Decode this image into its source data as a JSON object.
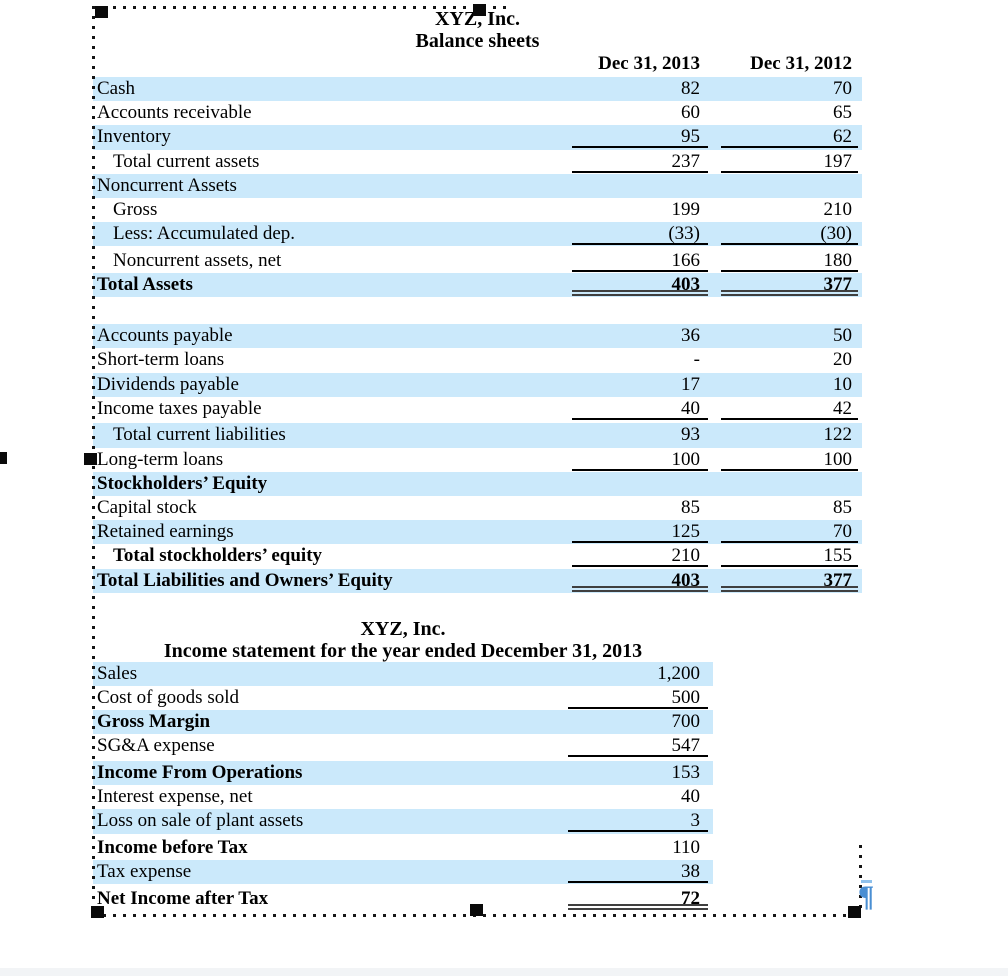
{
  "colors": {
    "row_shade": "#cbe9fb",
    "pilcrow": "#4a8fd3",
    "underline": "#000000",
    "double_rule": "#3f3f3f"
  },
  "balance_sheet": {
    "title": "XYZ, Inc.",
    "subtitle": "Balance sheets",
    "columns": [
      "Dec 31, 2013",
      "Dec 31, 2012"
    ],
    "rows": [
      {
        "label": "Cash",
        "v2013": "82",
        "v2012": "70",
        "shaded": true
      },
      {
        "label": "Accounts receivable",
        "v2013": "60",
        "v2012": "65"
      },
      {
        "label": "Inventory",
        "v2013": "95",
        "v2012": "62",
        "shaded": true,
        "underline": true
      },
      {
        "label": "Total current assets",
        "v2013": "237",
        "v2012": "197",
        "indent": 1,
        "underline": true
      },
      {
        "label": "Noncurrent Assets",
        "shaded": true
      },
      {
        "label": "Gross",
        "v2013": "199",
        "v2012": "210",
        "indent": 1
      },
      {
        "label": "Less: Accumulated dep.",
        "v2013": "(33)",
        "v2012": "(30)",
        "shaded": true,
        "indent": 1,
        "underline": true
      },
      {
        "label": "Noncurrent assets, net",
        "v2013": "166",
        "v2012": "180",
        "indent": 1,
        "underline": true,
        "gap_before": true
      },
      {
        "label": "Total Assets",
        "v2013": "403",
        "v2012": "377",
        "shaded": true,
        "bold": true,
        "double": true
      },
      {
        "type": "spacer"
      },
      {
        "label": "Accounts payable",
        "v2013": "36",
        "v2012": "50",
        "shaded": true
      },
      {
        "label": "Short-term loans",
        "v2013": "-",
        "v2012": "20"
      },
      {
        "label": "Dividends payable",
        "v2013": "17",
        "v2012": "10",
        "shaded": true
      },
      {
        "label": "Income taxes payable",
        "v2013": "40",
        "v2012": "42",
        "underline": true
      },
      {
        "label": "Total current liabilities",
        "v2013": "93",
        "v2012": "122",
        "shaded": true,
        "indent": 1,
        "gap_before": true
      },
      {
        "label": "Long-term loans",
        "v2013": "100",
        "v2012": "100",
        "underline": true
      },
      {
        "label": "Stockholders’ Equity",
        "shaded": true,
        "bold_label": true
      },
      {
        "label": "Capital stock",
        "v2013": "85",
        "v2012": "85"
      },
      {
        "label": "Retained earnings",
        "v2013": "125",
        "v2012": "70",
        "shaded": true,
        "underline": true
      },
      {
        "label": "Total stockholders’ equity",
        "v2013": "210",
        "v2012": "155",
        "bold_label": true,
        "indent": 1,
        "underline": true
      },
      {
        "label": "Total Liabilities and Owners’ Equity",
        "v2013": "403",
        "v2012": "377",
        "shaded": true,
        "bold": true,
        "double": true
      }
    ]
  },
  "income_statement": {
    "title": "XYZ, Inc.",
    "subtitle": "Income statement for the year ended December 31, 2013",
    "rows": [
      {
        "label": "Sales",
        "value": "1,200",
        "shaded": true
      },
      {
        "label": "Cost of goods sold",
        "value": "500",
        "underline": true
      },
      {
        "label": "Gross Margin",
        "value": "700",
        "shaded": true,
        "bold_label": true
      },
      {
        "label": "SG&A expense",
        "value": "547",
        "underline": true
      },
      {
        "label": "Income From Operations",
        "value": "153",
        "shaded": true,
        "bold_label": true,
        "gap_before": true
      },
      {
        "label": "Interest expense, net",
        "value": "40"
      },
      {
        "label": "Loss on sale of plant assets",
        "value": "3",
        "shaded": true,
        "underline": true
      },
      {
        "label": "Income before Tax",
        "value": "110",
        "bold_label": true,
        "gap_before": true
      },
      {
        "label": "Tax expense",
        "value": "38",
        "shaded": true,
        "underline": true
      },
      {
        "label": "Net Income after Tax",
        "value": "72",
        "bold": true,
        "double": true,
        "gap_before": true
      }
    ]
  },
  "selection": {
    "pilcrow_mark": "¶"
  }
}
